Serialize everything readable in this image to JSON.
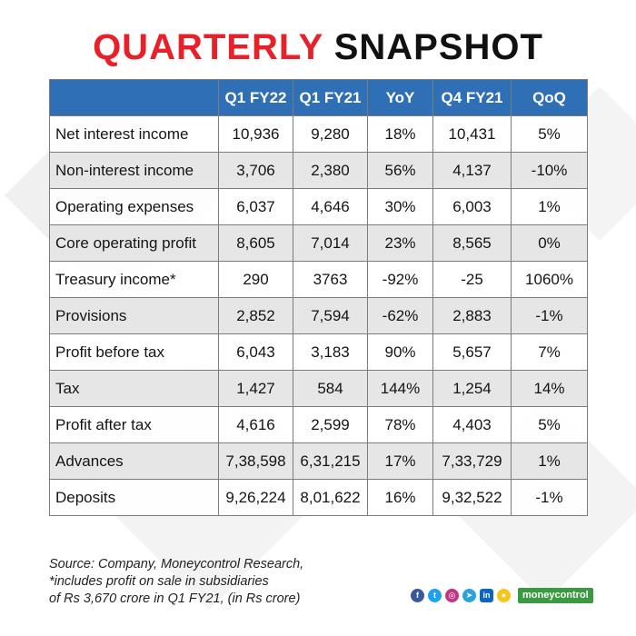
{
  "title": {
    "part1": "QUARTERLY",
    "part2": "SNAPSHOT"
  },
  "table": {
    "headers": [
      "",
      "Q1 FY22",
      "Q1 FY21",
      "YoY",
      "Q4 FY21",
      "QoQ"
    ],
    "rows": [
      [
        "Net interest income",
        "10,936",
        "9,280",
        "18%",
        "10,431",
        "5%"
      ],
      [
        "Non-interest income",
        "3,706",
        "2,380",
        "56%",
        "4,137",
        "-10%"
      ],
      [
        "Operating expenses",
        "6,037",
        "4,646",
        "30%",
        "6,003",
        "1%"
      ],
      [
        "Core operating profit",
        "8,605",
        "7,014",
        "23%",
        "8,565",
        "0%"
      ],
      [
        "Treasury income*",
        "290",
        "3763",
        "-92%",
        "-25",
        "1060%"
      ],
      [
        "Provisions",
        "2,852",
        "7,594",
        "-62%",
        "2,883",
        "-1%"
      ],
      [
        "Profit before tax",
        "6,043",
        "3,183",
        "90%",
        "5,657",
        "7%"
      ],
      [
        "Tax",
        "1,427",
        "584",
        "144%",
        "1,254",
        "14%"
      ],
      [
        "Profit after tax",
        "4,616",
        "2,599",
        "78%",
        "4,403",
        "5%"
      ],
      [
        "Advances",
        "7,38,598",
        "6,31,215",
        "17%",
        "7,33,729",
        "1%"
      ],
      [
        "Deposits",
        "9,26,224",
        "8,01,622",
        "16%",
        "9,32,522",
        "-1%"
      ]
    ]
  },
  "source": {
    "line1": "Source: Company, Moneycontrol Research,",
    "line2": "*includes profit on sale in subsidiaries",
    "line3": "of Rs 3,670 crore in Q1 FY21, (in Rs crore)"
  },
  "footer": {
    "social_icons": [
      {
        "name": "facebook-icon",
        "glyph": "f",
        "color": "#3b5998"
      },
      {
        "name": "twitter-icon",
        "glyph": "t",
        "color": "#1da1f2"
      },
      {
        "name": "instagram-icon",
        "glyph": "◎",
        "color": "#c13584"
      },
      {
        "name": "telegram-icon",
        "glyph": "➤",
        "color": "#2aa3dc"
      },
      {
        "name": "linkedin-icon",
        "glyph": "in",
        "color": "#0a66c2"
      },
      {
        "name": "koo-icon",
        "glyph": "●",
        "color": "#f5c518"
      }
    ],
    "brand": "moneycontrol",
    "brand_color": "#3a9a3f"
  },
  "colors": {
    "accent_red": "#e8202a",
    "header_blue": "#2f6fb6",
    "row_alt": "#e6e6e6"
  }
}
